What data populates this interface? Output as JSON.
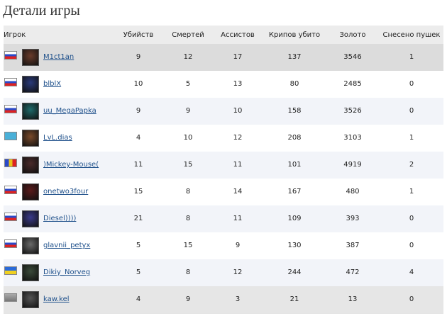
{
  "title": "Детали игры",
  "table": {
    "header": [
      "Игрок",
      "Убийств",
      "Смертей",
      "Ассистов",
      "Крипов убито",
      "Золото",
      "Снесено пушек"
    ],
    "rows": [
      [
        "M1ct1an",
        9,
        12,
        17,
        137,
        3546,
        1
      ],
      [
        "blblX",
        10,
        5,
        13,
        80,
        2485,
        0
      ],
      [
        "uu_MegaPapka",
        9,
        9,
        10,
        158,
        3526,
        0
      ],
      [
        "LvL.dias",
        4,
        10,
        12,
        208,
        3103,
        1
      ],
      [
        ")Mickey-Mouse(",
        11,
        15,
        11,
        101,
        4919,
        2
      ],
      [
        "onetwo3four",
        15,
        8,
        14,
        167,
        480,
        1
      ],
      [
        "Diesel))))",
        21,
        8,
        11,
        109,
        393,
        0
      ],
      [
        "glavnii_petyx",
        5,
        15,
        9,
        130,
        387,
        0
      ],
      [
        "Dikiy_Norveg",
        5,
        8,
        12,
        244,
        472,
        4
      ],
      [
        "kaw.kel",
        4,
        9,
        3,
        21,
        13,
        0
      ]
    ]
  }
}
